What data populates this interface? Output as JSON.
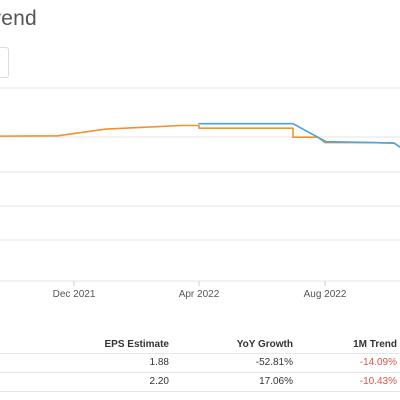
{
  "title": "rend",
  "chart_data": {
    "type": "line",
    "x_tick_labels": [
      "Dec 2021",
      "Apr 2022",
      "Aug 2022"
    ],
    "series": [
      {
        "color": "#f0922e",
        "points": [
          [
            "2021-08-20",
            1.93
          ],
          [
            "2021-11-15",
            1.935
          ],
          [
            "2022-01-01",
            2.01
          ],
          [
            "2022-03-15",
            2.05
          ],
          [
            "2022-04-01",
            2.05
          ],
          [
            "2022-04-01",
            2.02
          ],
          [
            "2022-07-01",
            2.02
          ],
          [
            "2022-07-01",
            1.92
          ],
          [
            "2022-07-25",
            1.92
          ],
          [
            "2022-08-01",
            1.86
          ],
          [
            "2022-09-15",
            1.86
          ],
          [
            "2022-10-07",
            1.855
          ],
          [
            "2022-10-24",
            1.72
          ]
        ]
      },
      {
        "color": "#4aa3df",
        "points": [
          [
            "2022-04-01",
            2.07
          ],
          [
            "2022-07-01",
            2.07
          ],
          [
            "2022-08-02",
            1.87
          ],
          [
            "2022-10-07",
            1.855
          ],
          [
            "2022-10-24",
            1.72
          ]
        ]
      }
    ],
    "grid": true
  },
  "table": {
    "headers": {
      "eps": "EPS Estimate",
      "yoy": "YoY Growth",
      "trend": "1M Trend"
    },
    "rows": [
      {
        "eps": "1.88",
        "yoy": "-52.81%",
        "trend": "-14.09%"
      },
      {
        "eps": "2.20",
        "yoy": "17.06%",
        "trend": "-10.43%"
      }
    ]
  },
  "colors": {
    "negative": "#d9534f"
  }
}
